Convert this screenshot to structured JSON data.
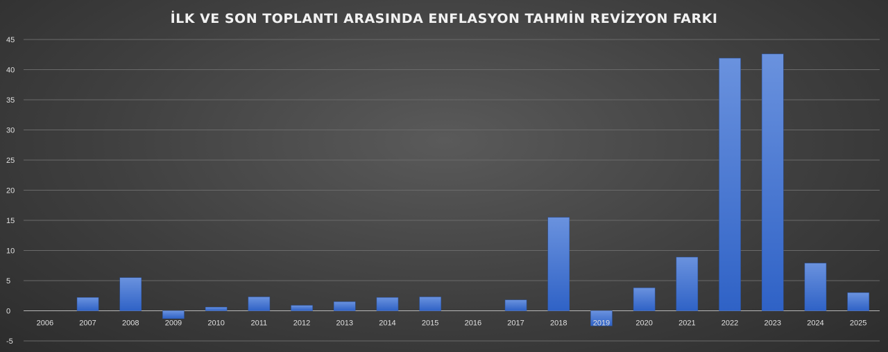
{
  "chart_data": {
    "type": "bar",
    "title": "İLK VE SON TOPLANTI ARASINDA ENFLASYON TAHMİN REVİZYON FARKI",
    "xlabel": "",
    "ylabel": "",
    "categories": [
      "2006",
      "2007",
      "2008",
      "2009",
      "2010",
      "2011",
      "2012",
      "2013",
      "2014",
      "2015",
      "2016",
      "2017",
      "2018",
      "2019",
      "2020",
      "2021",
      "2022",
      "2023",
      "2024",
      "2025"
    ],
    "values": [
      0,
      2.2,
      5.5,
      -1.3,
      0.6,
      2.3,
      0.9,
      1.5,
      2.2,
      2.3,
      0,
      1.8,
      15.5,
      -2.5,
      3.8,
      8.9,
      41.9,
      42.6,
      7.9,
      3.0
    ],
    "ylim": [
      -5,
      45
    ],
    "yticks": [
      -5,
      0,
      5,
      10,
      15,
      20,
      25,
      30,
      35,
      40,
      45
    ],
    "grid": true,
    "legend": "none",
    "bar_color": "#3f72d0"
  }
}
